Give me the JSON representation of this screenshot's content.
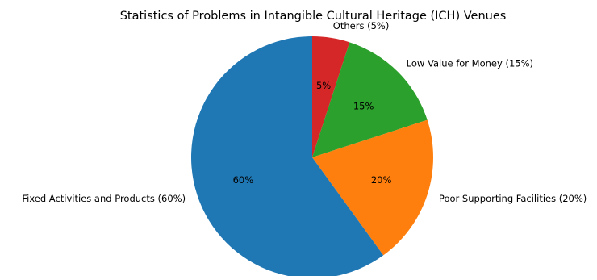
{
  "chart_data": {
    "type": "pie",
    "title": "Statistics of Problems in Intangible Cultural Heritage (ICH) Venues",
    "categories": [
      "Others (5%)",
      "Low Value for Money (15%)",
      "Poor Supporting Facilities (20%)",
      "Fixed Activities and Products (60%)"
    ],
    "values": [
      5,
      15,
      20,
      60
    ],
    "percent_labels": [
      "5%",
      "15%",
      "20%",
      "60%"
    ],
    "colors": [
      "#d62728",
      "#2ca02c",
      "#ff7f0e",
      "#1f77b4"
    ],
    "start_angle_deg": 90,
    "direction": "clockwise"
  }
}
